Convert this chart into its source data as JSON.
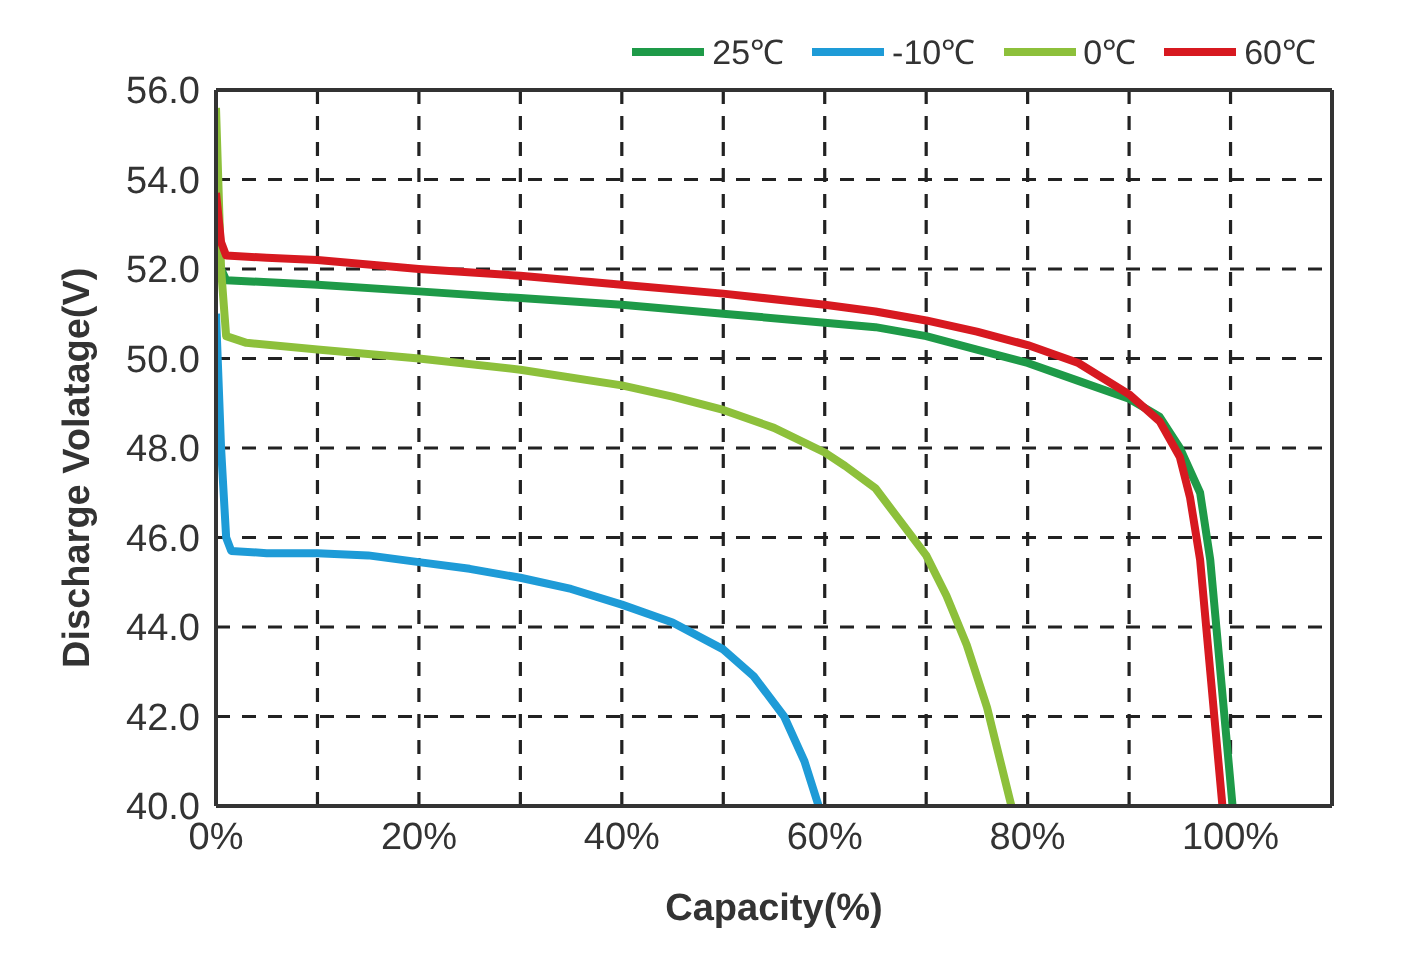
{
  "chart_data": {
    "type": "line",
    "xlabel": "Capacity(%)",
    "ylabel": "Discharge Volatage(V)",
    "xlim": [
      0,
      110
    ],
    "ylim": [
      40,
      56
    ],
    "xticks": [
      {
        "value": 0,
        "label": "0%"
      },
      {
        "value": 10,
        "label": null
      },
      {
        "value": 20,
        "label": "20%"
      },
      {
        "value": 30,
        "label": null
      },
      {
        "value": 40,
        "label": "40%"
      },
      {
        "value": 50,
        "label": null
      },
      {
        "value": 60,
        "label": "60%"
      },
      {
        "value": 70,
        "label": null
      },
      {
        "value": 80,
        "label": "80%"
      },
      {
        "value": 90,
        "label": null
      },
      {
        "value": 100,
        "label": "100%"
      },
      {
        "value": 110,
        "label": null
      }
    ],
    "yticks": [
      {
        "value": 40,
        "label": "40.0"
      },
      {
        "value": 42,
        "label": "42.0"
      },
      {
        "value": 44,
        "label": "44.0"
      },
      {
        "value": 46,
        "label": "46.0"
      },
      {
        "value": 48,
        "label": "48.0"
      },
      {
        "value": 50,
        "label": "50.0"
      },
      {
        "value": 52,
        "label": "52.0"
      },
      {
        "value": 54,
        "label": "54.0"
      },
      {
        "value": 56,
        "label": "56.0"
      }
    ],
    "grid": true,
    "legend": "top right",
    "marker": "none",
    "line_style": "solid",
    "series": [
      {
        "name": "25℃",
        "color": "#1e9a48",
        "x": [
          0,
          0.5,
          1,
          10,
          20,
          30,
          40,
          50,
          60,
          65,
          70,
          75,
          80,
          85,
          90,
          93,
          95,
          97,
          98,
          99,
          100.2
        ],
        "values": [
          52.4,
          52,
          51.75,
          51.65,
          51.5,
          51.35,
          51.2,
          51,
          50.8,
          50.7,
          50.5,
          50.2,
          49.9,
          49.5,
          49.1,
          48.7,
          48,
          47,
          45.5,
          43,
          40
        ]
      },
      {
        "name": "-10℃",
        "color": "#1e9bd7",
        "x": [
          0,
          0.5,
          1,
          1.5,
          5,
          10,
          15,
          20,
          25,
          30,
          35,
          40,
          45,
          50,
          53,
          56,
          58,
          59.4
        ],
        "values": [
          51,
          48,
          46,
          45.7,
          45.65,
          45.65,
          45.6,
          45.45,
          45.3,
          45.1,
          44.85,
          44.5,
          44.1,
          43.5,
          42.9,
          42,
          41,
          40
        ]
      },
      {
        "name": "0℃",
        "color": "#8dc03b",
        "x": [
          0,
          0.5,
          1,
          3,
          10,
          20,
          30,
          40,
          45,
          50,
          55,
          60,
          62,
          65,
          67,
          70,
          72,
          74,
          76,
          78.4
        ],
        "values": [
          55.6,
          52,
          50.5,
          50.35,
          50.2,
          50,
          49.75,
          49.4,
          49.15,
          48.85,
          48.45,
          47.9,
          47.6,
          47.1,
          46.5,
          45.6,
          44.7,
          43.6,
          42.2,
          40
        ]
      },
      {
        "name": "60℃",
        "color": "#d71920",
        "x": [
          0,
          0.5,
          1,
          5,
          10,
          20,
          30,
          40,
          50,
          60,
          65,
          70,
          75,
          80,
          85,
          90,
          93,
          95,
          96,
          97,
          98,
          99.2
        ],
        "values": [
          53.7,
          52.6,
          52.3,
          52.25,
          52.2,
          52,
          51.85,
          51.65,
          51.45,
          51.2,
          51.05,
          50.85,
          50.6,
          50.3,
          49.9,
          49.2,
          48.6,
          47.8,
          46.9,
          45.5,
          43,
          40
        ]
      }
    ]
  }
}
